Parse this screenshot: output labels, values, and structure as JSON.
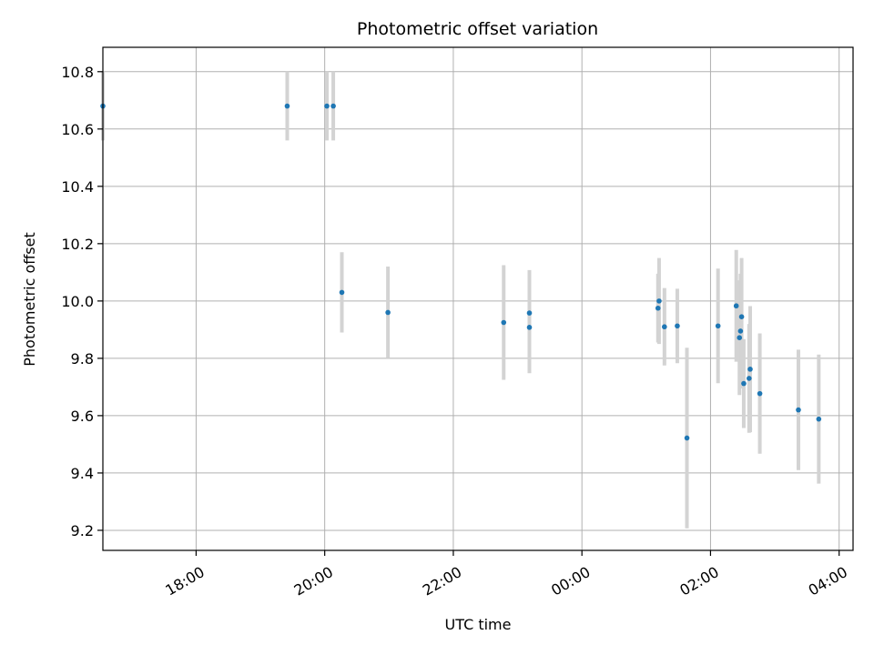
{
  "chart_data": {
    "type": "scatter",
    "title": "Photometric offset variation",
    "xlabel": "UTC time",
    "ylabel": "Photometric offset",
    "x_unit": "hours since 00:00 UTC of first night (values >24 are next day)",
    "xlim": [
      "16:33",
      "04:13"
    ],
    "ylim": [
      9.13,
      10.885
    ],
    "x_ticks": [
      "18:00",
      "20:00",
      "22:00",
      "00:00",
      "02:00",
      "04:00"
    ],
    "y_ticks": [
      "9.2",
      "9.4",
      "9.6",
      "9.8",
      "10.0",
      "10.2",
      "10.4",
      "10.6",
      "10.8"
    ],
    "grid": true,
    "point_color": "#1f77b4",
    "errorbar_color": "#d3d3d3",
    "points": [
      {
        "x": "16:33",
        "y": 10.68,
        "err": 0.12
      },
      {
        "x": "19:25",
        "y": 10.68,
        "err": 0.12
      },
      {
        "x": "20:02",
        "y": 10.68,
        "err": 0.12
      },
      {
        "x": "20:08",
        "y": 10.68,
        "err": 0.12
      },
      {
        "x": "20:16",
        "y": 10.03,
        "err": 0.14
      },
      {
        "x": "20:59",
        "y": 9.96,
        "err": 0.16
      },
      {
        "x": "22:47",
        "y": 9.925,
        "err": 0.2
      },
      {
        "x": "23:11",
        "y": 9.958,
        "err": 0.15
      },
      {
        "x": "23:11",
        "y": 9.908,
        "err": 0.16
      },
      {
        "x": "01:11",
        "y": 9.975,
        "err": 0.12
      },
      {
        "x": "01:12",
        "y": 10.0,
        "err": 0.15
      },
      {
        "x": "01:17",
        "y": 9.91,
        "err": 0.135
      },
      {
        "x": "01:29",
        "y": 9.913,
        "err": 0.13
      },
      {
        "x": "01:38",
        "y": 9.522,
        "err": 0.315
      },
      {
        "x": "02:07",
        "y": 9.913,
        "err": 0.2
      },
      {
        "x": "02:24",
        "y": 9.983,
        "err": 0.195
      },
      {
        "x": "02:27",
        "y": 9.872,
        "err": 0.2
      },
      {
        "x": "02:28",
        "y": 9.895,
        "err": 0.2
      },
      {
        "x": "02:29",
        "y": 9.945,
        "err": 0.205
      },
      {
        "x": "02:31",
        "y": 9.712,
        "err": 0.155
      },
      {
        "x": "02:36",
        "y": 9.73,
        "err": 0.19
      },
      {
        "x": "02:37",
        "y": 9.762,
        "err": 0.22
      },
      {
        "x": "02:46",
        "y": 9.677,
        "err": 0.21
      },
      {
        "x": "03:22",
        "y": 9.62,
        "err": 0.21
      },
      {
        "x": "03:41",
        "y": 9.588,
        "err": 0.225
      }
    ]
  }
}
